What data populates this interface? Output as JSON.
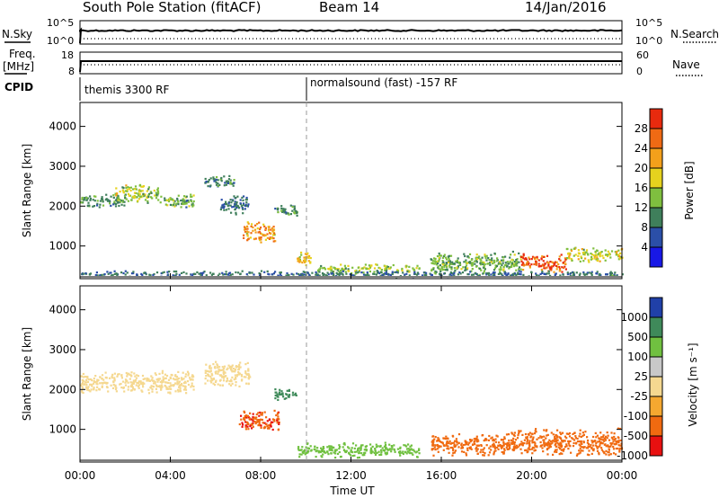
{
  "header": {
    "station": "South Pole Station (fitACF)",
    "beam": "Beam 14",
    "date": "14/Jan/2016"
  },
  "strips": {
    "nsky_label": "N.Sky",
    "nsearch_label": "N.Search",
    "nsky_ticks": [
      "10^5",
      "10^0"
    ],
    "nsearch_ticks": [
      "10^5",
      "10^0"
    ],
    "freq_label_1": "Freq.",
    "freq_label_2": "[MHz]",
    "freq_ticks": [
      "18",
      "8"
    ],
    "nave_label": "Nave",
    "nave_ticks": [
      "60",
      "0"
    ],
    "cpid_label": "CPID",
    "cpid_modes": [
      "themis 3300 RF",
      "normalsound (fast) -157 RF"
    ],
    "mode_change_time": "10:00"
  },
  "colors": {
    "power_scale": [
      "#1818e6",
      "#2b4fa8",
      "#3f7f5b",
      "#7fbf3f",
      "#e6d21e",
      "#f3a01b",
      "#ef6a14",
      "#e82a0e"
    ],
    "velocity_scale": [
      "#e81010",
      "#f06a10",
      "#f5a830",
      "#f5d890",
      "#c8c8c8",
      "#70c040",
      "#3f8a5a",
      "#2040a8"
    ]
  },
  "chart_data": [
    {
      "type": "heatmap",
      "panel": "power",
      "title": "",
      "ylabel": "Slant Range [km]",
      "xlabel": "",
      "ylim": [
        180,
        4600
      ],
      "x_tick_labels": [
        "00:00",
        "04:00",
        "08:00",
        "12:00",
        "16:00",
        "20:00",
        "00:00"
      ],
      "y_tick_labels": [
        "1000",
        "2000",
        "3000",
        "4000"
      ],
      "colorbar": {
        "label": "Power [dB]",
        "ticks": [
          "28",
          "24",
          "20",
          "16",
          "12",
          "8",
          "4"
        ],
        "range": [
          0,
          30
        ]
      },
      "regions": [
        {
          "t_start": 0.0,
          "t_end": 2.0,
          "range_center": 2150,
          "range_halfwidth": 180,
          "value": 10
        },
        {
          "t_start": 1.5,
          "t_end": 3.5,
          "range_center": 2350,
          "range_halfwidth": 250,
          "value": 14
        },
        {
          "t_start": 3.5,
          "t_end": 5.0,
          "range_center": 2150,
          "range_halfwidth": 200,
          "value": 12
        },
        {
          "t_start": 5.5,
          "t_end": 6.8,
          "range_center": 2650,
          "range_halfwidth": 180,
          "value": 9
        },
        {
          "t_start": 6.2,
          "t_end": 7.5,
          "range_center": 2050,
          "range_halfwidth": 250,
          "value": 8
        },
        {
          "t_start": 7.2,
          "t_end": 8.6,
          "range_center": 1350,
          "range_halfwidth": 280,
          "value": 21
        },
        {
          "t_start": 8.6,
          "t_end": 9.6,
          "range_center": 1900,
          "range_halfwidth": 150,
          "value": 10
        },
        {
          "t_start": 9.6,
          "t_end": 10.2,
          "range_center": 700,
          "range_halfwidth": 180,
          "value": 18
        },
        {
          "t_start": 10.5,
          "t_end": 15.0,
          "range_center": 450,
          "range_halfwidth": 120,
          "value": 14
        },
        {
          "t_start": 15.5,
          "t_end": 19.5,
          "range_center": 600,
          "range_halfwidth": 300,
          "value": 12
        },
        {
          "t_start": 19.5,
          "t_end": 21.5,
          "range_center": 600,
          "range_halfwidth": 250,
          "value": 26
        },
        {
          "t_start": 21.5,
          "t_end": 24.0,
          "range_center": 800,
          "range_halfwidth": 200,
          "value": 16
        },
        {
          "t_start": 0.0,
          "t_end": 24.0,
          "range_center": 320,
          "range_halfwidth": 80,
          "value": 8
        }
      ]
    },
    {
      "type": "heatmap",
      "panel": "velocity",
      "title": "",
      "ylabel": "Slant Range [km]",
      "xlabel": "Time UT",
      "ylim": [
        180,
        4600
      ],
      "x_tick_labels": [
        "00:00",
        "04:00",
        "08:00",
        "12:00",
        "16:00",
        "20:00",
        "00:00"
      ],
      "y_tick_labels": [
        "1000",
        "2000",
        "3000",
        "4000"
      ],
      "colorbar": {
        "label": "Velocity [m s⁻¹]",
        "ticks": [
          "1000",
          "500",
          "100",
          "25",
          "-25",
          "-100",
          "-500",
          "-1000"
        ],
        "range": [
          -1000,
          1000
        ]
      },
      "regions": [
        {
          "t_start": 0.0,
          "t_end": 5.0,
          "range_center": 2200,
          "range_halfwidth": 300,
          "value": 0
        },
        {
          "t_start": 5.5,
          "t_end": 7.5,
          "range_center": 2400,
          "range_halfwidth": 350,
          "value": 0
        },
        {
          "t_start": 7.0,
          "t_end": 8.8,
          "range_center": 1250,
          "range_halfwidth": 300,
          "value": -450
        },
        {
          "t_start": 8.6,
          "t_end": 9.6,
          "range_center": 1900,
          "range_halfwidth": 150,
          "value": 700
        },
        {
          "t_start": 9.6,
          "t_end": 15.0,
          "range_center": 500,
          "range_halfwidth": 200,
          "value": 200
        },
        {
          "t_start": 15.5,
          "t_end": 19.0,
          "range_center": 650,
          "range_halfwidth": 300,
          "value": -200
        },
        {
          "t_start": 19.0,
          "t_end": 24.0,
          "range_center": 700,
          "range_halfwidth": 350,
          "value": -300
        }
      ]
    }
  ]
}
